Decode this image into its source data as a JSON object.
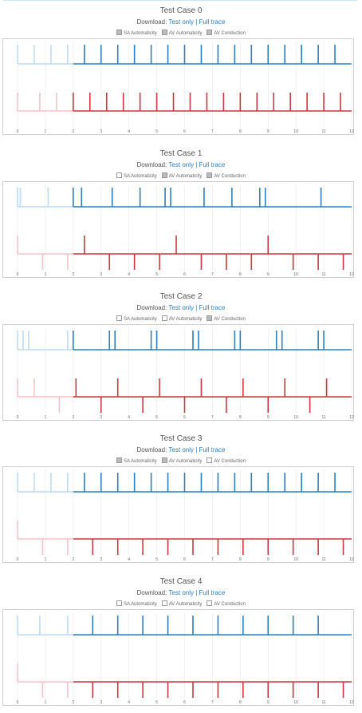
{
  "download_label": "Download:",
  "link_test_only": "Test only",
  "link_separator": "|",
  "link_full_trace": "Full trace",
  "toggle_labels": [
    "SA Automaticity",
    "AV Automaticity",
    "AV Conduction"
  ],
  "colors": {
    "atrial_history": "#bcdcf2",
    "atrial": "#2a7ec0",
    "ventricular_history": "#f5c3c6",
    "ventricular": "#c9383f",
    "grid": "#e8e8e8",
    "frame": "#cfcfcf",
    "tick_text": "#666666"
  },
  "chart_data": [
    {
      "type": "line",
      "title": "Test Case 0",
      "toggles": [
        true,
        true,
        true
      ],
      "xlim": [
        0,
        12
      ],
      "x_ticks": [
        "0",
        "1",
        "2",
        "3",
        "4",
        "5",
        "6",
        "7",
        "8",
        "9",
        "10",
        "11",
        "12"
      ],
      "history_end": 2,
      "series": [
        {
          "values": [
            0.0,
            0.6,
            1.2,
            1.8,
            2.4,
            3.0,
            3.6,
            4.2,
            4.8,
            5.4,
            6.0,
            6.6,
            7.2,
            7.8,
            8.4,
            9.0,
            9.6,
            10.2,
            10.8,
            11.4
          ]
        },
        {
          "up": [
            0.0,
            0.8,
            1.4,
            2.0,
            2.6,
            3.2,
            3.8,
            4.4,
            5.0,
            5.6,
            6.2,
            6.8,
            7.4,
            8.0,
            8.6,
            9.2,
            9.8,
            10.4,
            11.0,
            11.6
          ],
          "down": []
        }
      ]
    },
    {
      "type": "line",
      "title": "Test Case 1",
      "toggles": [
        false,
        true,
        true
      ],
      "xlim": [
        0,
        12
      ],
      "x_ticks": [
        "0",
        "1",
        "2",
        "3",
        "4",
        "5",
        "6",
        "7",
        "8",
        "9",
        "10",
        "11",
        "12"
      ],
      "history_end": 2,
      "series": [
        {
          "values": [
            0.0,
            0.1,
            1.1,
            2.0,
            2.3,
            3.4,
            4.4,
            5.3,
            5.5,
            6.7,
            7.7,
            8.7,
            8.9,
            10.9
          ]
        },
        {
          "up": [
            0.0,
            2.4,
            5.7,
            9.0
          ],
          "down": [
            0.9,
            1.8,
            3.3,
            4.2,
            5.1,
            6.6,
            7.5,
            8.4,
            9.9,
            10.8,
            11.7
          ]
        }
      ]
    },
    {
      "type": "line",
      "title": "Test Case 2",
      "toggles": [
        false,
        false,
        true
      ],
      "xlim": [
        0,
        12
      ],
      "x_ticks": [
        "0",
        "1",
        "2",
        "3",
        "4",
        "5",
        "6",
        "7",
        "8",
        "9",
        "10",
        "11",
        "12"
      ],
      "history_end": 2,
      "series": [
        {
          "values": [
            0.0,
            0.2,
            0.4,
            1.8,
            2.0,
            3.3,
            3.5,
            4.8,
            5.0,
            6.3,
            6.5,
            7.8,
            8.0,
            9.3,
            9.5,
            10.8,
            11.0
          ]
        },
        {
          "up": [
            0.0,
            0.6,
            2.1,
            3.6,
            5.1,
            6.6,
            8.1,
            9.6,
            11.1
          ],
          "down": [
            1.5,
            3.0,
            4.5,
            6.0,
            7.5,
            9.0,
            10.5
          ]
        }
      ]
    },
    {
      "type": "line",
      "title": "Test Case 3",
      "toggles": [
        true,
        true,
        false
      ],
      "xlim": [
        0,
        12
      ],
      "x_ticks": [
        "0",
        "1",
        "2",
        "3",
        "4",
        "5",
        "6",
        "7",
        "8",
        "9",
        "10",
        "11",
        "12"
      ],
      "history_end": 2,
      "series": [
        {
          "values": [
            0.0,
            0.6,
            1.2,
            1.8,
            2.4,
            3.0,
            3.6,
            4.2,
            4.8,
            5.4,
            6.0,
            6.6,
            7.2,
            7.8,
            8.4,
            9.0,
            9.6,
            10.2,
            10.8,
            11.4
          ]
        },
        {
          "up": [
            0.0
          ],
          "down": [
            0.9,
            1.8,
            2.7,
            3.6,
            4.5,
            5.4,
            6.3,
            7.2,
            8.1,
            9.0,
            9.9,
            10.8,
            11.7
          ]
        }
      ]
    },
    {
      "type": "line",
      "title": "Test Case 4",
      "toggles": [
        false,
        false,
        false
      ],
      "xlim": [
        0,
        12
      ],
      "x_ticks": [
        "0",
        "1",
        "2",
        "3",
        "4",
        "5",
        "6",
        "7",
        "8",
        "9",
        "10",
        "11",
        "12"
      ],
      "history_end": 2,
      "series": [
        {
          "values": [
            0.0,
            0.8,
            1.8,
            2.7,
            3.6,
            4.5,
            5.4,
            6.3,
            7.2,
            8.1,
            9.0,
            9.9,
            10.8
          ]
        },
        {
          "up": [
            0.0
          ],
          "down": [
            0.9,
            1.8,
            2.7,
            3.6,
            4.5,
            5.4,
            6.3,
            7.2,
            8.1,
            9.0,
            9.9,
            10.8,
            11.7
          ]
        }
      ]
    }
  ]
}
